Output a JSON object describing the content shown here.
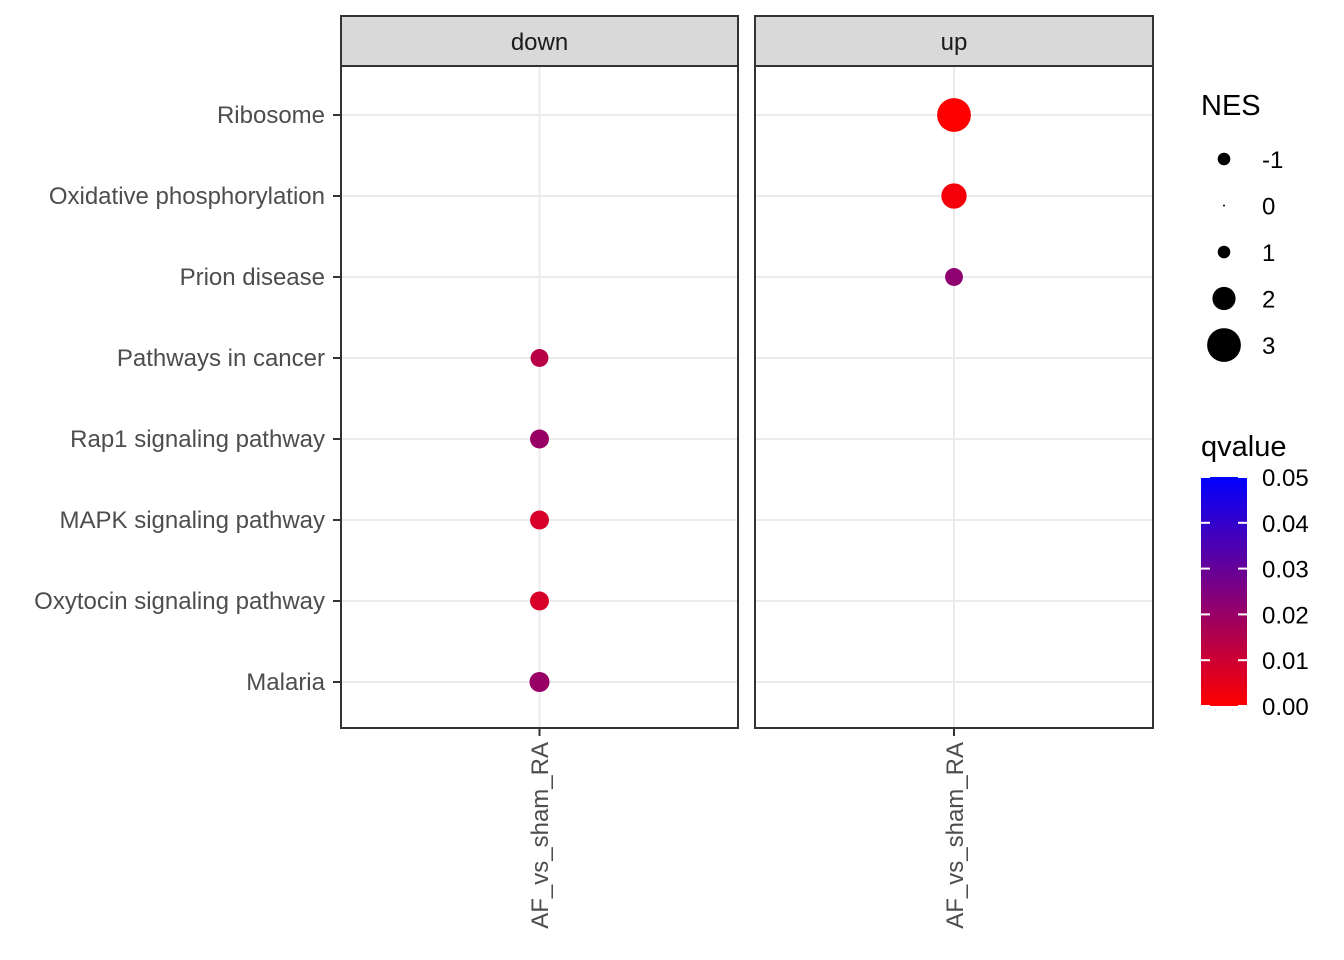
{
  "chart_data": {
    "type": "scatter",
    "facets": [
      "down",
      "up"
    ],
    "x_category": "AF_vs_sham_RA",
    "y_categories": [
      "Ribosome",
      "Oxidative phosphorylation",
      "Prion disease",
      "Pathways in cancer",
      "Rap1 signaling pathway",
      "MAPK signaling pathway",
      "Oxytocin signaling pathway",
      "Malaria"
    ],
    "points": [
      {
        "facet": "up",
        "pathway": "Ribosome",
        "NES": 3.0,
        "qvalue": 0.0
      },
      {
        "facet": "up",
        "pathway": "Oxidative phosphorylation",
        "NES": 2.2,
        "qvalue": 0.002
      },
      {
        "facet": "up",
        "pathway": "Prion disease",
        "NES": 1.5,
        "qvalue": 0.022
      },
      {
        "facet": "down",
        "pathway": "Pathways in cancer",
        "NES": -1.5,
        "qvalue": 0.014
      },
      {
        "facet": "down",
        "pathway": "Rap1 signaling pathway",
        "NES": -1.6,
        "qvalue": 0.02
      },
      {
        "facet": "down",
        "pathway": "MAPK signaling pathway",
        "NES": -1.6,
        "qvalue": 0.008
      },
      {
        "facet": "down",
        "pathway": "Oxytocin signaling pathway",
        "NES": -1.6,
        "qvalue": 0.008
      },
      {
        "facet": "down",
        "pathway": "Malaria",
        "NES": -1.7,
        "qvalue": 0.02
      }
    ],
    "size_legend": {
      "title": "NES",
      "breaks": [
        "-1",
        "0",
        "1",
        "2",
        "3"
      ],
      "values": [
        -1,
        0,
        1,
        2,
        3
      ]
    },
    "color_legend": {
      "title": "qvalue",
      "ticks": [
        "0.05",
        "0.04",
        "0.03",
        "0.02",
        "0.01",
        "0.00"
      ],
      "range": [
        0,
        0.05
      ],
      "low_color": "#ff0000",
      "high_color": "#0000ff"
    },
    "grid": true,
    "legend_position": "right"
  }
}
